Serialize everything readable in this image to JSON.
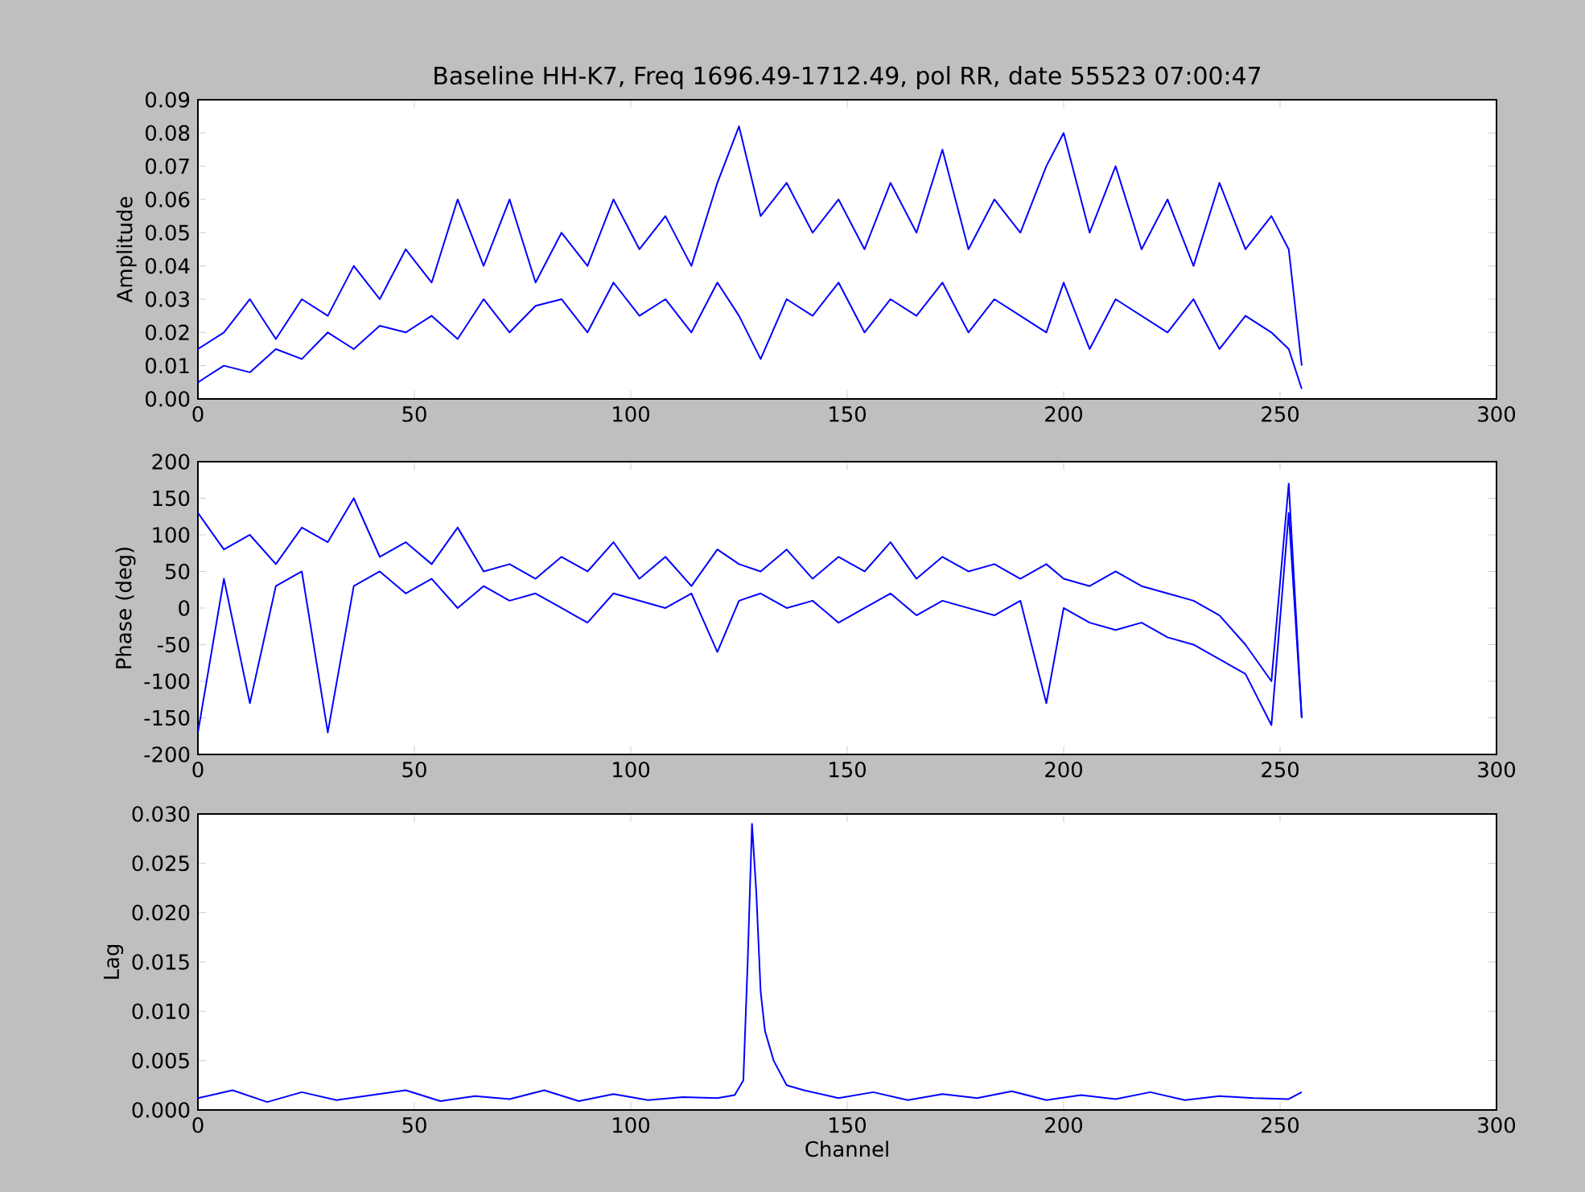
{
  "chart_data": [
    {
      "type": "line",
      "title": "Baseline HH-K7, Freq 1696.49-1712.49, pol RR, date 55523 07:00:47",
      "ylabel": "Amplitude",
      "x": [
        0,
        6,
        12,
        18,
        24,
        30,
        36,
        42,
        48,
        54,
        60,
        66,
        72,
        78,
        84,
        90,
        96,
        102,
        108,
        114,
        120,
        125,
        130,
        136,
        142,
        148,
        154,
        160,
        166,
        172,
        178,
        184,
        190,
        196,
        200,
        206,
        212,
        218,
        224,
        230,
        236,
        242,
        248,
        252,
        255
      ],
      "series": [
        {
          "color": "#0000ff",
          "values": [
            0.015,
            0.02,
            0.03,
            0.018,
            0.03,
            0.025,
            0.04,
            0.03,
            0.045,
            0.035,
            0.06,
            0.04,
            0.06,
            0.035,
            0.05,
            0.04,
            0.06,
            0.045,
            0.055,
            0.04,
            0.065,
            0.082,
            0.055,
            0.065,
            0.05,
            0.06,
            0.045,
            0.065,
            0.05,
            0.075,
            0.045,
            0.06,
            0.05,
            0.07,
            0.08,
            0.05,
            0.07,
            0.045,
            0.06,
            0.04,
            0.065,
            0.045,
            0.055,
            0.045,
            0.01
          ]
        },
        {
          "color": "#0000ff",
          "values": [
            0.005,
            0.01,
            0.008,
            0.015,
            0.012,
            0.02,
            0.015,
            0.022,
            0.02,
            0.025,
            0.018,
            0.03,
            0.02,
            0.028,
            0.03,
            0.02,
            0.035,
            0.025,
            0.03,
            0.02,
            0.035,
            0.025,
            0.012,
            0.03,
            0.025,
            0.035,
            0.02,
            0.03,
            0.025,
            0.035,
            0.02,
            0.03,
            0.025,
            0.02,
            0.035,
            0.015,
            0.03,
            0.025,
            0.02,
            0.03,
            0.015,
            0.025,
            0.02,
            0.015,
            0.003
          ]
        }
      ],
      "xlim": [
        0,
        300
      ],
      "xticks": [
        0,
        50,
        100,
        150,
        200,
        250,
        300
      ],
      "ylim": [
        0,
        0.09
      ],
      "yticks": [
        {
          "value": 0,
          "label": "0.00"
        },
        {
          "value": 0.01,
          "label": "0.01"
        },
        {
          "value": 0.02,
          "label": "0.02"
        },
        {
          "value": 0.03,
          "label": "0.03"
        },
        {
          "value": 0.04,
          "label": "0.04"
        },
        {
          "value": 0.05,
          "label": "0.05"
        },
        {
          "value": 0.06,
          "label": "0.06"
        },
        {
          "value": 0.07,
          "label": "0.07"
        },
        {
          "value": 0.08,
          "label": "0.08"
        },
        {
          "value": 0.09,
          "label": "0.09"
        }
      ]
    },
    {
      "type": "line",
      "ylabel": "Phase (deg)",
      "x": [
        0,
        6,
        12,
        18,
        24,
        30,
        36,
        42,
        48,
        54,
        60,
        66,
        72,
        78,
        84,
        90,
        96,
        102,
        108,
        114,
        120,
        125,
        130,
        136,
        142,
        148,
        154,
        160,
        166,
        172,
        178,
        184,
        190,
        196,
        200,
        206,
        212,
        218,
        224,
        230,
        236,
        242,
        248,
        252,
        255
      ],
      "series": [
        {
          "color": "#0000ff",
          "values": [
            130,
            80,
            100,
            60,
            110,
            90,
            150,
            70,
            90,
            60,
            110,
            50,
            60,
            40,
            70,
            50,
            90,
            40,
            70,
            30,
            80,
            60,
            50,
            80,
            40,
            70,
            50,
            90,
            40,
            70,
            50,
            60,
            40,
            60,
            40,
            30,
            50,
            30,
            20,
            10,
            -10,
            -50,
            -100,
            170,
            -150
          ]
        },
        {
          "color": "#0000ff",
          "values": [
            -170,
            40,
            -130,
            30,
            50,
            -170,
            30,
            50,
            20,
            40,
            0,
            30,
            10,
            20,
            0,
            -20,
            20,
            10,
            0,
            20,
            -60,
            10,
            20,
            0,
            10,
            -20,
            0,
            20,
            -10,
            10,
            0,
            -10,
            10,
            -130,
            0,
            -20,
            -30,
            -20,
            -40,
            -50,
            -70,
            -90,
            -160,
            130,
            -150
          ]
        }
      ],
      "xlim": [
        0,
        300
      ],
      "xticks": [
        0,
        50,
        100,
        150,
        200,
        250,
        300
      ],
      "ylim": [
        -200,
        200
      ],
      "yticks": [
        -200,
        -150,
        -100,
        -50,
        0,
        50,
        100,
        150,
        200
      ]
    },
    {
      "type": "line",
      "xlabel": "Channel",
      "ylabel": "Lag",
      "x": [
        0,
        8,
        16,
        24,
        32,
        40,
        48,
        56,
        64,
        72,
        80,
        88,
        96,
        104,
        112,
        120,
        124,
        126,
        127,
        128,
        129,
        130,
        131,
        133,
        136,
        140,
        148,
        156,
        164,
        172,
        180,
        188,
        196,
        204,
        212,
        220,
        228,
        236,
        244,
        252,
        255
      ],
      "series": [
        {
          "color": "#0000ff",
          "values": [
            0.0012,
            0.002,
            0.0008,
            0.0018,
            0.001,
            0.0015,
            0.002,
            0.0009,
            0.0014,
            0.0011,
            0.002,
            0.0009,
            0.0016,
            0.001,
            0.0013,
            0.0012,
            0.0015,
            0.003,
            0.015,
            0.029,
            0.022,
            0.012,
            0.008,
            0.005,
            0.0025,
            0.002,
            0.0012,
            0.0018,
            0.001,
            0.0016,
            0.0012,
            0.0019,
            0.001,
            0.0015,
            0.0011,
            0.0018,
            0.001,
            0.0014,
            0.0012,
            0.0011,
            0.0018
          ]
        }
      ],
      "xlim": [
        0,
        300
      ],
      "xticks": [
        0,
        50,
        100,
        150,
        200,
        250,
        300
      ],
      "ylim": [
        0,
        0.03
      ],
      "yticks": [
        {
          "value": 0,
          "label": "0.000"
        },
        {
          "value": 0.005,
          "label": "0.005"
        },
        {
          "value": 0.01,
          "label": "0.010"
        },
        {
          "value": 0.015,
          "label": "0.015"
        },
        {
          "value": 0.02,
          "label": "0.020"
        },
        {
          "value": 0.025,
          "label": "0.025"
        },
        {
          "value": 0.03,
          "label": "0.030"
        }
      ]
    }
  ]
}
